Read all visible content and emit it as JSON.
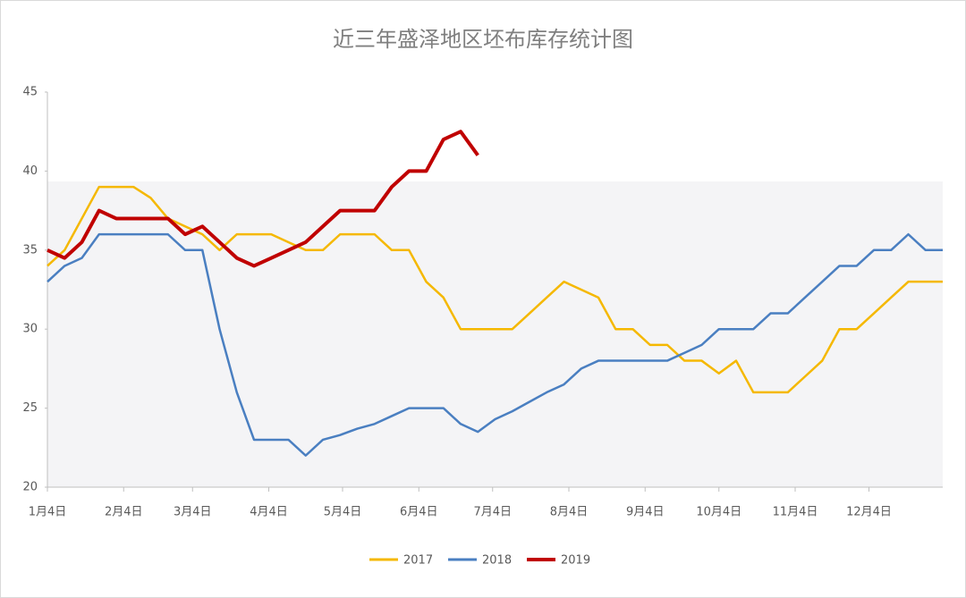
{
  "chart_data": {
    "type": "line",
    "title": "近三年盛泽地区坯布库存统计图",
    "x": [
      0,
      7,
      14,
      21,
      28,
      35,
      42,
      49,
      56,
      63,
      70,
      77,
      84,
      91,
      98,
      105,
      112,
      119,
      126,
      133,
      140,
      147,
      154,
      161,
      168,
      175,
      182,
      189,
      196,
      203,
      210,
      217,
      224,
      231,
      238,
      245,
      252,
      259,
      266,
      273,
      280,
      287,
      294,
      301,
      308,
      315,
      322,
      329,
      336,
      343,
      350,
      357,
      364
    ],
    "xlim": [
      0,
      364
    ],
    "xticks": [
      {
        "value": 0,
        "label": "1月4日"
      },
      {
        "value": 31,
        "label": "2月4日"
      },
      {
        "value": 59,
        "label": "3月4日"
      },
      {
        "value": 90,
        "label": "4月4日"
      },
      {
        "value": 120,
        "label": "5月4日"
      },
      {
        "value": 151,
        "label": "6月4日"
      },
      {
        "value": 181,
        "label": "7月4日"
      },
      {
        "value": 212,
        "label": "8月4日"
      },
      {
        "value": 243,
        "label": "9月4日"
      },
      {
        "value": 273,
        "label": "10月4日"
      },
      {
        "value": 304,
        "label": "11月4日"
      },
      {
        "value": 334,
        "label": "12月4日"
      }
    ],
    "ylim": [
      20,
      45
    ],
    "yticks": [
      20,
      25,
      30,
      35,
      40,
      45
    ],
    "series": [
      {
        "name": "2017",
        "color": "#f5b800",
        "values": [
          34,
          35,
          37,
          39,
          39,
          39,
          38.3,
          37,
          36.5,
          36,
          35,
          36,
          36,
          36,
          35.5,
          35,
          35,
          36,
          36,
          36,
          35,
          35,
          33,
          32,
          30,
          30,
          30,
          30,
          31,
          32,
          33,
          32.5,
          32,
          30,
          30,
          29,
          29,
          28,
          28,
          27.2,
          28,
          26,
          26,
          26,
          27,
          28,
          30,
          30,
          31,
          32,
          33,
          33,
          33
        ]
      },
      {
        "name": "2018",
        "color": "#4a7fc1",
        "values": [
          33,
          34,
          34.5,
          36,
          36,
          36,
          36,
          36,
          35,
          35,
          30,
          26,
          23,
          23,
          23,
          22,
          23,
          23.3,
          23.7,
          24,
          24.5,
          25,
          25,
          25,
          24,
          23.5,
          24.3,
          24.8,
          25.4,
          26,
          26.5,
          27.5,
          28,
          28,
          28,
          28,
          28,
          28.5,
          29,
          30,
          30,
          30,
          31,
          31,
          32,
          33,
          34,
          34,
          35,
          35,
          36,
          35,
          35
        ]
      },
      {
        "name": "2019",
        "color": "#c00000",
        "values": [
          35,
          34.5,
          35.5,
          37.5,
          37,
          37,
          37,
          37,
          36,
          36.5,
          35.5,
          34.5,
          34,
          34.5,
          35,
          35.5,
          36.5,
          37.5,
          37.5,
          37.5,
          39,
          40,
          40,
          42,
          42.5,
          41,
          null,
          null,
          null,
          null,
          null,
          null,
          null,
          null,
          null,
          null,
          null,
          null,
          null,
          null,
          null,
          null,
          null,
          null,
          null,
          null,
          null,
          null,
          null,
          null,
          null,
          null,
          null
        ]
      }
    ]
  }
}
